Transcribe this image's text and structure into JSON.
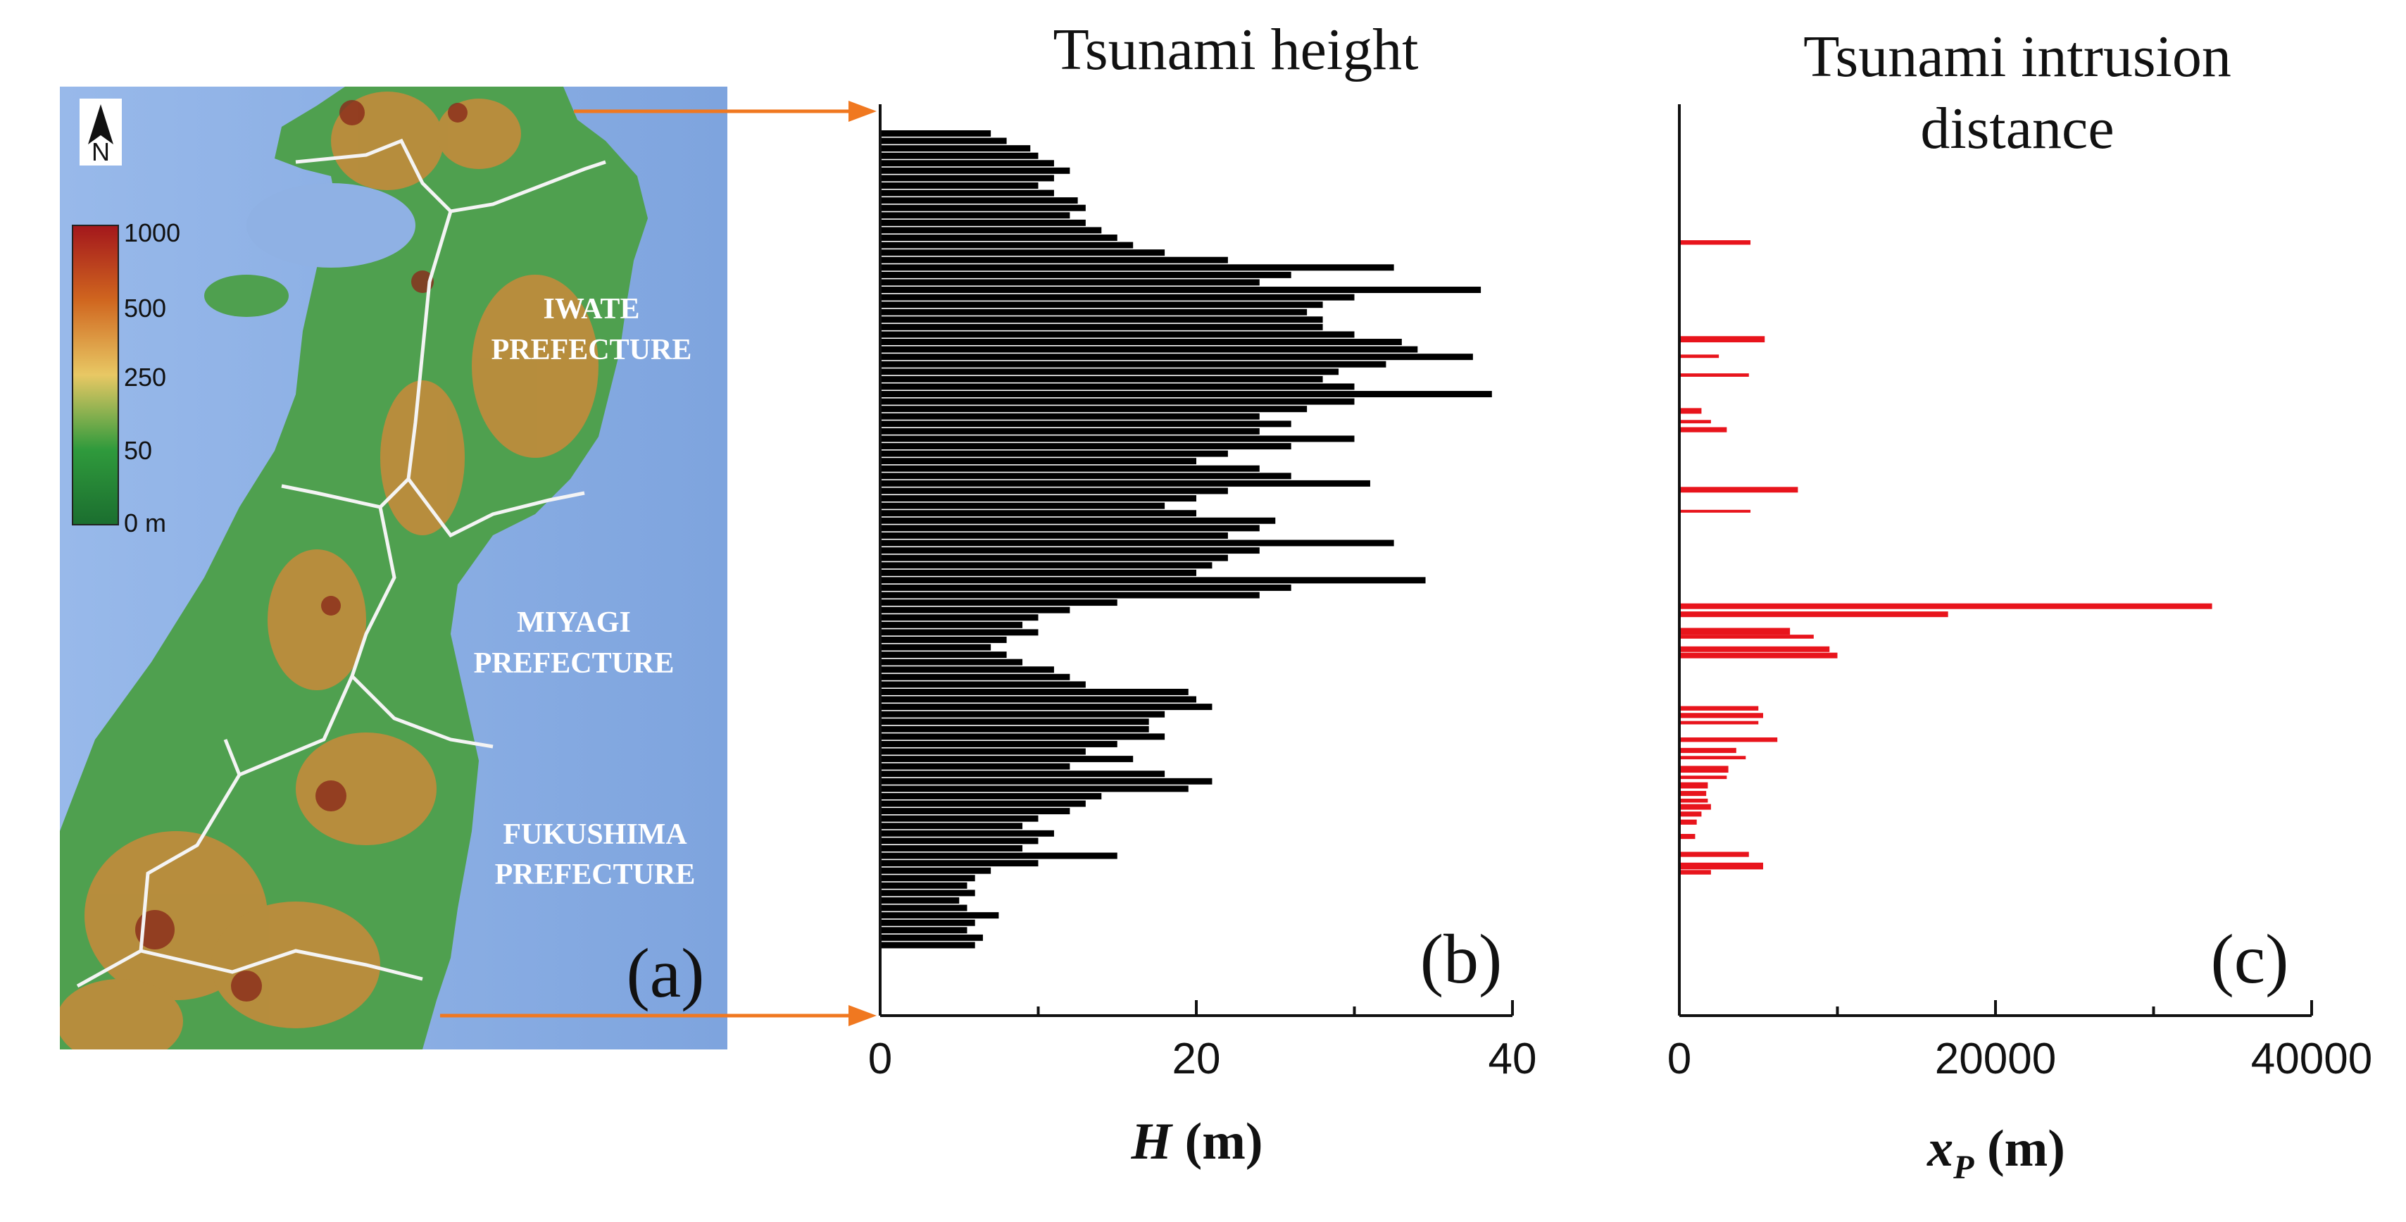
{
  "map": {
    "panel_label": "(a)",
    "north_label": "N",
    "legend_labels": [
      "1000",
      "500",
      "250",
      "50",
      "0 m"
    ],
    "prefectures": [
      {
        "line1": "IWATE",
        "line2": "PREFECTURE"
      },
      {
        "line1": "MIYAGI",
        "line2": "PREFECTURE"
      },
      {
        "line1": "FUKUSHIMA",
        "line2": "PREFECTURE"
      }
    ],
    "colors": {
      "ocean": "#8fb1e4",
      "land": "#4fa04f",
      "highland": "#c98a3a",
      "arrow": "#f07820",
      "border": "#f4f4f4"
    }
  },
  "chart_data": [
    {
      "type": "bar",
      "orientation": "horizontal",
      "title": "Tsunami height",
      "panel_label": "(b)",
      "xlabel_symbol": "H",
      "xlabel_unit": " (m)",
      "xlim": [
        0,
        40
      ],
      "xticks": [
        "0",
        "20",
        "40"
      ],
      "color": "#000000",
      "note": "values listed north (top) to south (bottom)",
      "values": [
        7,
        8,
        9.5,
        10,
        11,
        12,
        11,
        10,
        11,
        12.5,
        13,
        12,
        13,
        14,
        15,
        16,
        18,
        22,
        32.5,
        26,
        24,
        38,
        30,
        28,
        27,
        28,
        28,
        30,
        33,
        34,
        37.5,
        32,
        29,
        28,
        30,
        38.7,
        30,
        27,
        24,
        26,
        24,
        30,
        26,
        22,
        20,
        24,
        26,
        31,
        22,
        20,
        18,
        20,
        25,
        24,
        22,
        32.5,
        24,
        22,
        21,
        20,
        34.5,
        26,
        24,
        15,
        12,
        10,
        9,
        10,
        8,
        7,
        8,
        9,
        11,
        12,
        13,
        19.5,
        20,
        21,
        18,
        17,
        17,
        18,
        15,
        13,
        16,
        12,
        18,
        21,
        19.5,
        14,
        13,
        12,
        10,
        9,
        11,
        10,
        9,
        15,
        10,
        7,
        6,
        5.5,
        6,
        5,
        5.5,
        7.5,
        6,
        5.5,
        6.5,
        6
      ]
    },
    {
      "type": "bar",
      "orientation": "horizontal",
      "title_line1": "Tsunami intrusion",
      "title_line2": "distance",
      "panel_label": "(c)",
      "xlabel_symbol": "x",
      "xlabel_sub": "P",
      "xlabel_unit": " (m)",
      "xlim": [
        0,
        40000
      ],
      "xticks": [
        "0",
        "20000",
        "40000"
      ],
      "color": "#e8141c",
      "bars": [
        {
          "pos": 0.137,
          "value": 4500,
          "w": 1.6
        },
        {
          "pos": 0.245,
          "value": 5400,
          "w": 2.2
        },
        {
          "pos": 0.264,
          "value": 2500,
          "w": 1.2
        },
        {
          "pos": 0.285,
          "value": 4400,
          "w": 1.2
        },
        {
          "pos": 0.325,
          "value": 1400,
          "w": 2.0
        },
        {
          "pos": 0.337,
          "value": 2000,
          "w": 1.2
        },
        {
          "pos": 0.346,
          "value": 3000,
          "w": 1.8
        },
        {
          "pos": 0.413,
          "value": 7500,
          "w": 2.0
        },
        {
          "pos": 0.437,
          "value": 4500,
          "w": 1.0
        },
        {
          "pos": 0.543,
          "value": 33700,
          "w": 2.0
        },
        {
          "pos": 0.552,
          "value": 17000,
          "w": 2.0
        },
        {
          "pos": 0.571,
          "value": 7000,
          "w": 2.4
        },
        {
          "pos": 0.577,
          "value": 8500,
          "w": 1.4
        },
        {
          "pos": 0.591,
          "value": 9500,
          "w": 2.0
        },
        {
          "pos": 0.598,
          "value": 10000,
          "w": 2.0
        },
        {
          "pos": 0.657,
          "value": 5000,
          "w": 1.6
        },
        {
          "pos": 0.665,
          "value": 5300,
          "w": 1.8
        },
        {
          "pos": 0.673,
          "value": 5000,
          "w": 1.2
        },
        {
          "pos": 0.692,
          "value": 6200,
          "w": 1.6
        },
        {
          "pos": 0.704,
          "value": 3600,
          "w": 1.8
        },
        {
          "pos": 0.712,
          "value": 4200,
          "w": 1.2
        },
        {
          "pos": 0.725,
          "value": 3100,
          "w": 2.4
        },
        {
          "pos": 0.734,
          "value": 3000,
          "w": 1.2
        },
        {
          "pos": 0.743,
          "value": 1800,
          "w": 2.2
        },
        {
          "pos": 0.752,
          "value": 1700,
          "w": 1.8
        },
        {
          "pos": 0.76,
          "value": 1800,
          "w": 1.4
        },
        {
          "pos": 0.767,
          "value": 2000,
          "w": 2.0
        },
        {
          "pos": 0.775,
          "value": 1400,
          "w": 1.8
        },
        {
          "pos": 0.784,
          "value": 1100,
          "w": 1.8
        },
        {
          "pos": 0.8,
          "value": 1000,
          "w": 1.8
        },
        {
          "pos": 0.82,
          "value": 4400,
          "w": 1.8
        },
        {
          "pos": 0.833,
          "value": 5300,
          "w": 2.4
        },
        {
          "pos": 0.84,
          "value": 2000,
          "w": 1.6
        }
      ]
    }
  ]
}
